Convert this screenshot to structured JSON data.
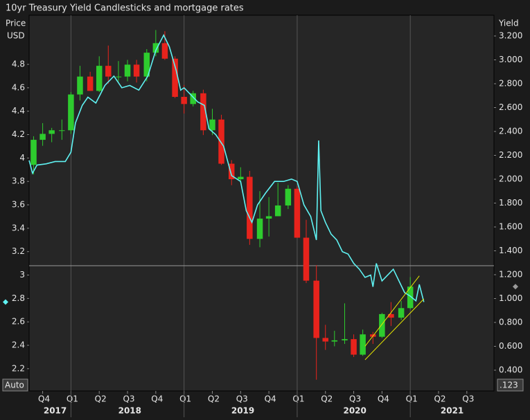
{
  "chart_data": {
    "type": "candlestick",
    "title": "10yr Treasury Yield Candlesticks and mortgage rates",
    "y_label": [
      "Price",
      "USD"
    ],
    "y2_label": "Yield",
    "ui": {
      "auto": "Auto",
      "precision": ".123"
    },
    "xlim": [
      2017.63,
      2021.74
    ],
    "xticks": [
      {
        "value": 2017.75,
        "label": "Q4"
      },
      {
        "value": 2018,
        "label": "Q1"
      },
      {
        "value": 2018.25,
        "label": "Q2"
      },
      {
        "value": 2018.5,
        "label": "Q3"
      },
      {
        "value": 2018.75,
        "label": "Q4"
      },
      {
        "value": 2019,
        "label": "Q1"
      },
      {
        "value": 2019.25,
        "label": "Q2"
      },
      {
        "value": 2019.5,
        "label": "Q3"
      },
      {
        "value": 2019.75,
        "label": "Q4"
      },
      {
        "value": 2020,
        "label": "Q1"
      },
      {
        "value": 2020.25,
        "label": "Q2"
      },
      {
        "value": 2020.5,
        "label": "Q3"
      },
      {
        "value": 2020.75,
        "label": "Q4"
      },
      {
        "value": 2021,
        "label": "Q1"
      },
      {
        "value": 2021.25,
        "label": "Q2"
      },
      {
        "value": 2021.5,
        "label": "Q3"
      }
    ],
    "year_ticks": [
      {
        "value": 2017.86,
        "label": "2017"
      },
      {
        "value": 2018.52,
        "label": "2018"
      },
      {
        "value": 2019.52,
        "label": "2019"
      },
      {
        "value": 2020.51,
        "label": "2020"
      },
      {
        "value": 2021.37,
        "label": "2021"
      }
    ],
    "ylim": [
      2.01,
      5.22
    ],
    "yticks": [
      2.2,
      2.4,
      2.6,
      2.8,
      3,
      3.2,
      3.4,
      3.6,
      3.8,
      4,
      4.2,
      4.4,
      4.6,
      4.8
    ],
    "y2lim": [
      0.226,
      3.374
    ],
    "y2ticks": [
      {
        "value": 0.4,
        "label": "0.400"
      },
      {
        "value": 0.6,
        "label": "0.600"
      },
      {
        "value": 0.8,
        "label": "0.800"
      },
      {
        "value": 1,
        "label": "1.000"
      },
      {
        "value": 1.2,
        "label": "1.200"
      },
      {
        "value": 1.4,
        "label": "1.400"
      },
      {
        "value": 1.6,
        "label": "1.600"
      },
      {
        "value": 1.8,
        "label": "1.800"
      },
      {
        "value": 2,
        "label": "2.000"
      },
      {
        "value": 2.2,
        "label": "2.200"
      },
      {
        "value": 2.4,
        "label": "2.400"
      },
      {
        "value": 2.6,
        "label": "2.600"
      },
      {
        "value": 2.8,
        "label": "2.800"
      },
      {
        "value": 3,
        "label": "3.000"
      },
      {
        "value": 3.2,
        "label": "3.200"
      }
    ],
    "hline": 3.08,
    "candles": {
      "axis": "y2",
      "up_color": "#2ecc2e",
      "down_color": "#e8231c",
      "x": [
        2017.67,
        2017.75,
        2017.83,
        2017.92,
        2018.0,
        2018.08,
        2018.17,
        2018.25,
        2018.33,
        2018.42,
        2018.5,
        2018.58,
        2018.67,
        2018.75,
        2018.83,
        2018.92,
        2019.0,
        2019.08,
        2019.17,
        2019.25,
        2019.33,
        2019.42,
        2019.5,
        2019.58,
        2019.67,
        2019.75,
        2019.83,
        2019.92,
        2020.0,
        2020.08,
        2020.17,
        2020.25,
        2020.33,
        2020.42,
        2020.5,
        2020.58,
        2020.67,
        2020.75,
        2020.83,
        2020.92,
        2021.0
      ],
      "open": [
        2.12,
        2.33,
        2.38,
        2.41,
        2.41,
        2.71,
        2.86,
        2.74,
        2.95,
        2.86,
        2.86,
        2.96,
        2.86,
        3.06,
        3.14,
        3.01,
        2.69,
        2.63,
        2.72,
        2.41,
        2.5,
        2.13,
        2.0,
        2.02,
        1.5,
        1.67,
        1.69,
        1.78,
        1.92,
        1.51,
        1.15,
        0.67,
        0.64,
        0.65,
        0.66,
        0.53,
        0.7,
        0.68,
        0.87,
        0.84,
        0.92
      ],
      "high": [
        2.36,
        2.47,
        2.43,
        2.5,
        2.73,
        2.95,
        2.9,
        3.03,
        3.12,
        2.99,
        3.0,
        3.0,
        3.09,
        3.25,
        3.24,
        3.03,
        2.79,
        2.74,
        2.75,
        2.59,
        2.54,
        2.16,
        2.1,
        2.07,
        1.9,
        1.85,
        1.97,
        1.95,
        1.94,
        1.66,
        1.28,
        0.78,
        0.73,
        0.96,
        0.7,
        0.74,
        0.72,
        0.88,
        0.97,
        0.98,
        1.18
      ],
      "low": [
        2.04,
        2.28,
        2.31,
        2.33,
        2.38,
        2.66,
        2.74,
        2.73,
        2.8,
        2.82,
        2.82,
        2.81,
        2.82,
        3.03,
        3.0,
        2.68,
        2.55,
        2.61,
        2.37,
        2.37,
        2.12,
        1.95,
        1.97,
        1.45,
        1.43,
        1.52,
        1.69,
        1.75,
        1.51,
        1.13,
        0.32,
        0.57,
        0.6,
        0.62,
        0.51,
        0.52,
        0.62,
        0.67,
        0.77,
        0.82,
        0.91
      ],
      "close": [
        2.33,
        2.38,
        2.41,
        2.41,
        2.71,
        2.86,
        2.74,
        2.95,
        2.86,
        2.86,
        2.96,
        2.86,
        3.06,
        3.14,
        3.01,
        2.69,
        2.63,
        2.72,
        2.41,
        2.5,
        2.13,
        2.0,
        2.02,
        1.5,
        1.67,
        1.69,
        1.78,
        1.92,
        1.51,
        1.15,
        0.67,
        0.64,
        0.65,
        0.66,
        0.53,
        0.7,
        0.68,
        0.87,
        0.84,
        0.92,
        1.1
      ]
    },
    "line": {
      "color": "#5ff2f2",
      "x": [
        2017.63,
        2017.66,
        2017.7,
        2017.78,
        2017.86,
        2017.95,
        2018.0,
        2018.04,
        2018.1,
        2018.15,
        2018.22,
        2018.3,
        2018.38,
        2018.45,
        2018.52,
        2018.6,
        2018.68,
        2018.75,
        2018.82,
        2018.87,
        2018.93,
        2018.97,
        2019.0,
        2019.05,
        2019.12,
        2019.18,
        2019.22,
        2019.28,
        2019.35,
        2019.42,
        2019.5,
        2019.55,
        2019.6,
        2019.65,
        2019.72,
        2019.8,
        2019.88,
        2019.95,
        2020.0,
        2020.06,
        2020.12,
        2020.17,
        2020.19,
        2020.21,
        2020.25,
        2020.3,
        2020.35,
        2020.4,
        2020.45,
        2020.5,
        2020.55,
        2020.6,
        2020.65,
        2020.67,
        2020.7,
        2020.75,
        2020.8,
        2020.85,
        2020.9,
        2020.95,
        2021.0,
        2021.05,
        2021.08,
        2021.12
      ],
      "values": [
        3.98,
        3.87,
        3.94,
        3.95,
        3.97,
        3.97,
        4.05,
        4.3,
        4.45,
        4.52,
        4.47,
        4.62,
        4.7,
        4.6,
        4.62,
        4.58,
        4.7,
        4.92,
        5.05,
        4.95,
        4.75,
        4.58,
        4.6,
        4.55,
        4.48,
        4.45,
        4.25,
        4.2,
        4.1,
        3.85,
        3.8,
        3.55,
        3.45,
        3.6,
        3.7,
        3.8,
        3.8,
        3.82,
        3.8,
        3.6,
        3.5,
        3.3,
        4.15,
        3.55,
        3.45,
        3.35,
        3.3,
        3.2,
        3.18,
        3.1,
        3.05,
        2.98,
        3.0,
        2.9,
        3.1,
        2.95,
        3.0,
        3.05,
        2.95,
        2.85,
        2.82,
        2.78,
        2.92,
        2.77
      ]
    },
    "channel": {
      "color": "#e6e600",
      "axis": "y2",
      "lines": [
        {
          "x": [
            2020.6,
            2021.12
          ],
          "values": [
            0.487,
            0.997
          ]
        },
        {
          "x": [
            2020.6,
            2021.08
          ],
          "values": [
            0.6,
            1.19
          ]
        }
      ]
    }
  }
}
